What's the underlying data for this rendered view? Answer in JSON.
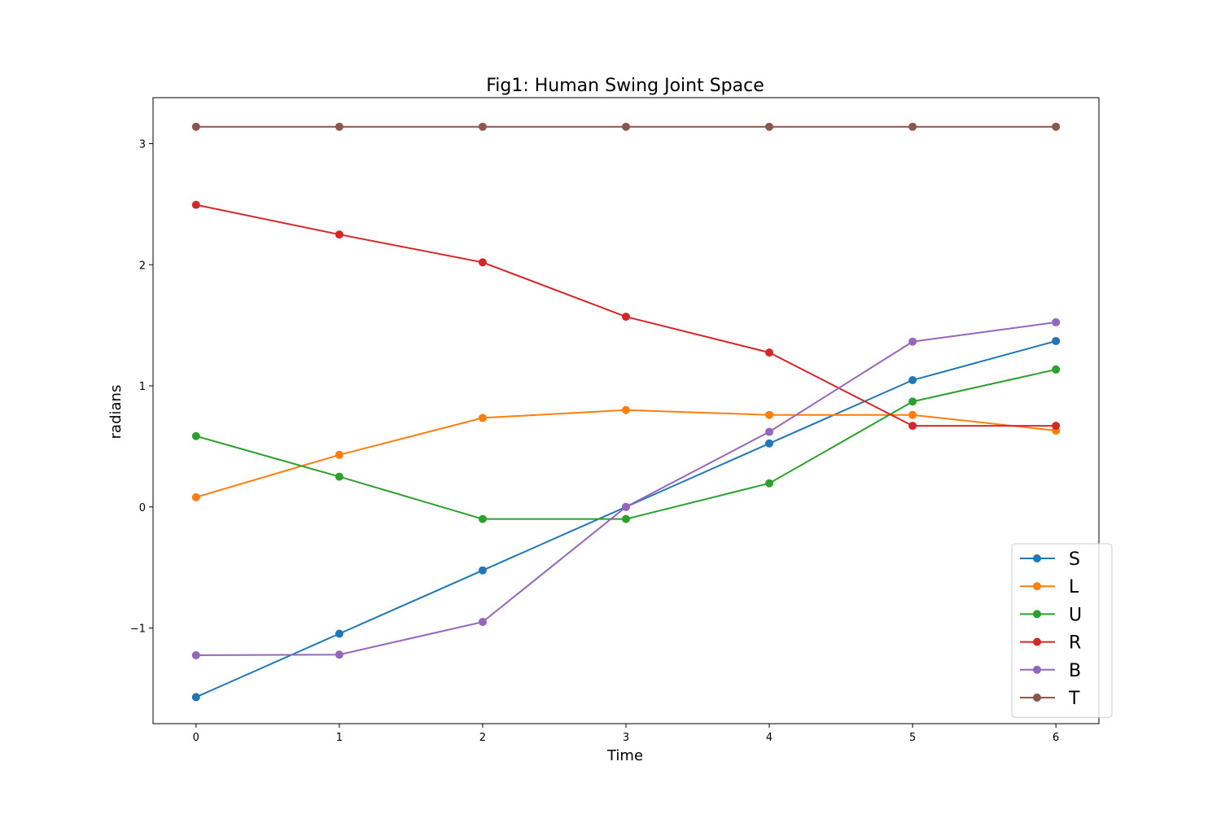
{
  "chart_data": {
    "type": "line",
    "title": "Fig1: Human Swing Joint Space",
    "xlabel": "Time",
    "ylabel": "radians",
    "x": [
      0,
      1,
      2,
      3,
      4,
      5,
      6
    ],
    "xticks": [
      "0",
      "1",
      "2",
      "3",
      "4",
      "5",
      "6"
    ],
    "yticks": [
      "−1",
      "0",
      "1",
      "2",
      "3"
    ],
    "ytick_values": [
      -1,
      0,
      1,
      2,
      3
    ],
    "xlim": [
      -0.3,
      6.3
    ],
    "ylim": [
      -1.79,
      3.38
    ],
    "grid": false,
    "legend_position": "lower-right",
    "series": [
      {
        "name": "S",
        "color": "#1f77b4",
        "values": [
          -1.571,
          -1.047,
          -0.524,
          0.0,
          0.524,
          1.047,
          1.37
        ]
      },
      {
        "name": "L",
        "color": "#ff7f0e",
        "values": [
          0.08,
          0.43,
          0.735,
          0.8,
          0.76,
          0.76,
          0.63
        ]
      },
      {
        "name": "U",
        "color": "#2ca02c",
        "values": [
          0.585,
          0.25,
          -0.1,
          -0.1,
          0.195,
          0.87,
          1.135
        ]
      },
      {
        "name": "R",
        "color": "#d62728",
        "values": [
          2.495,
          2.25,
          2.02,
          1.571,
          1.275,
          0.67,
          0.67
        ]
      },
      {
        "name": "B",
        "color": "#9467bd",
        "values": [
          -1.225,
          -1.22,
          -0.95,
          0.0,
          0.62,
          1.365,
          1.525
        ]
      },
      {
        "name": "T",
        "color": "#8c564b",
        "values": [
          3.14,
          3.14,
          3.14,
          3.14,
          3.14,
          3.14,
          3.14
        ]
      }
    ]
  }
}
